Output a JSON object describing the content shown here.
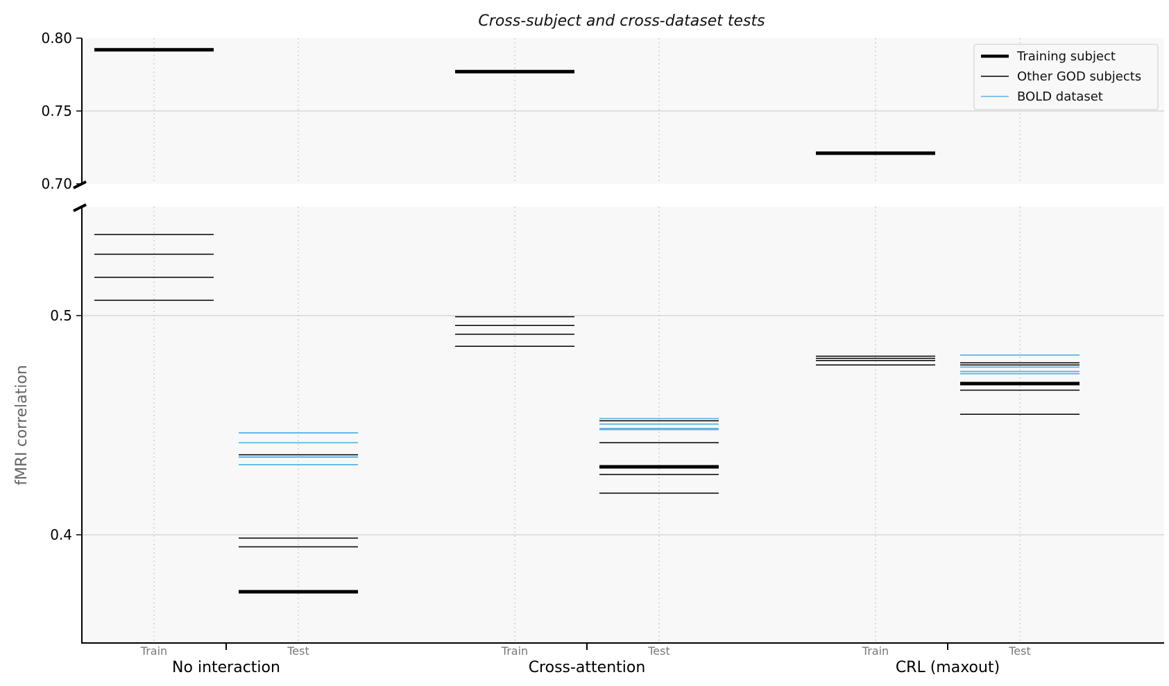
{
  "chart_data": {
    "type": "line",
    "title": "Cross-subject and cross-dataset tests",
    "ylabel": "fMRI correlation",
    "broken_y_axis": true,
    "upper_ylim": [
      0.7,
      0.8
    ],
    "lower_ylim": [
      0.35,
      0.595
    ],
    "upper_ticks": [
      "0.80",
      "0.75",
      "0.70"
    ],
    "lower_ticks": [
      "0.5",
      "0.4"
    ],
    "grid": true,
    "legend_position": "top-right",
    "groups": [
      "No interaction",
      "Cross-attention",
      "CRL (maxout)"
    ],
    "subcategories": [
      "Train",
      "Test"
    ],
    "colors": {
      "training": "#000000",
      "other": "#000000",
      "bold": "#5ab4e5",
      "panel": "#f8f8f8",
      "grid": "#d0d0d0"
    },
    "legend": [
      {
        "key": "training",
        "label": "Training subject"
      },
      {
        "key": "other",
        "label": "Other GOD subjects"
      },
      {
        "key": "bold",
        "label": "BOLD dataset"
      }
    ],
    "series": [
      {
        "key": "training",
        "values": {
          "No interaction": {
            "Train": [
              0.792
            ],
            "Test": [
              0.374
            ]
          },
          "Cross-attention": {
            "Train": [
              0.777
            ],
            "Test": [
              0.431
            ]
          },
          "CRL (maxout)": {
            "Train": [
              0.721
            ],
            "Test": [
              0.469
            ]
          }
        }
      },
      {
        "key": "other",
        "values": {
          "No interaction": {
            "Train": [
              0.537,
              0.528,
              0.5175,
              0.507
            ],
            "Test": [
              0.4365,
              0.4355,
              0.3985,
              0.3945
            ]
          },
          "Cross-attention": {
            "Train": [
              0.4995,
              0.4955,
              0.4915,
              0.486
            ],
            "Test": [
              0.452,
              0.442,
              0.4275,
              0.419
            ]
          },
          "CRL (maxout)": {
            "Train": [
              0.4815,
              0.4805,
              0.4795,
              0.4775
            ],
            "Test": [
              0.4785,
              0.4775,
              0.466,
              0.455
            ]
          }
        }
      },
      {
        "key": "bold",
        "values": {
          "No interaction": {
            "Test": [
              0.4465,
              0.442,
              0.4355,
              0.432
            ]
          },
          "Cross-attention": {
            "Test": [
              0.453,
              0.4505,
              0.4485,
              0.448
            ]
          },
          "CRL (maxout)": {
            "Test": [
              0.482,
              0.4765,
              0.4745,
              0.4735
            ]
          }
        }
      }
    ]
  }
}
